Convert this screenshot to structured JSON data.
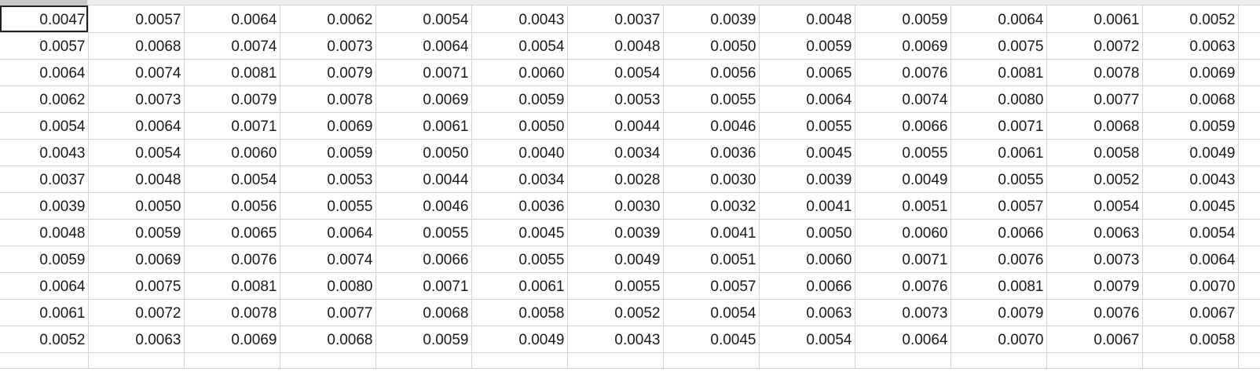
{
  "selected_cell": [
    0,
    0
  ],
  "rows": [
    [
      "0.0047",
      "0.0057",
      "0.0064",
      "0.0062",
      "0.0054",
      "0.0043",
      "0.0037",
      "0.0039",
      "0.0048",
      "0.0059",
      "0.0064",
      "0.0061",
      "0.0052"
    ],
    [
      "0.0057",
      "0.0068",
      "0.0074",
      "0.0073",
      "0.0064",
      "0.0054",
      "0.0048",
      "0.0050",
      "0.0059",
      "0.0069",
      "0.0075",
      "0.0072",
      "0.0063"
    ],
    [
      "0.0064",
      "0.0074",
      "0.0081",
      "0.0079",
      "0.0071",
      "0.0060",
      "0.0054",
      "0.0056",
      "0.0065",
      "0.0076",
      "0.0081",
      "0.0078",
      "0.0069"
    ],
    [
      "0.0062",
      "0.0073",
      "0.0079",
      "0.0078",
      "0.0069",
      "0.0059",
      "0.0053",
      "0.0055",
      "0.0064",
      "0.0074",
      "0.0080",
      "0.0077",
      "0.0068"
    ],
    [
      "0.0054",
      "0.0064",
      "0.0071",
      "0.0069",
      "0.0061",
      "0.0050",
      "0.0044",
      "0.0046",
      "0.0055",
      "0.0066",
      "0.0071",
      "0.0068",
      "0.0059"
    ],
    [
      "0.0043",
      "0.0054",
      "0.0060",
      "0.0059",
      "0.0050",
      "0.0040",
      "0.0034",
      "0.0036",
      "0.0045",
      "0.0055",
      "0.0061",
      "0.0058",
      "0.0049"
    ],
    [
      "0.0037",
      "0.0048",
      "0.0054",
      "0.0053",
      "0.0044",
      "0.0034",
      "0.0028",
      "0.0030",
      "0.0039",
      "0.0049",
      "0.0055",
      "0.0052",
      "0.0043"
    ],
    [
      "0.0039",
      "0.0050",
      "0.0056",
      "0.0055",
      "0.0046",
      "0.0036",
      "0.0030",
      "0.0032",
      "0.0041",
      "0.0051",
      "0.0057",
      "0.0054",
      "0.0045"
    ],
    [
      "0.0048",
      "0.0059",
      "0.0065",
      "0.0064",
      "0.0055",
      "0.0045",
      "0.0039",
      "0.0041",
      "0.0050",
      "0.0060",
      "0.0066",
      "0.0063",
      "0.0054"
    ],
    [
      "0.0059",
      "0.0069",
      "0.0076",
      "0.0074",
      "0.0066",
      "0.0055",
      "0.0049",
      "0.0051",
      "0.0060",
      "0.0071",
      "0.0076",
      "0.0073",
      "0.0064"
    ],
    [
      "0.0064",
      "0.0075",
      "0.0081",
      "0.0080",
      "0.0071",
      "0.0061",
      "0.0055",
      "0.0057",
      "0.0066",
      "0.0076",
      "0.0081",
      "0.0079",
      "0.0070"
    ],
    [
      "0.0061",
      "0.0072",
      "0.0078",
      "0.0077",
      "0.0068",
      "0.0058",
      "0.0052",
      "0.0054",
      "0.0063",
      "0.0073",
      "0.0079",
      "0.0076",
      "0.0067"
    ],
    [
      "0.0052",
      "0.0063",
      "0.0069",
      "0.0068",
      "0.0059",
      "0.0049",
      "0.0043",
      "0.0045",
      "0.0054",
      "0.0064",
      "0.0070",
      "0.0067",
      "0.0058"
    ]
  ]
}
